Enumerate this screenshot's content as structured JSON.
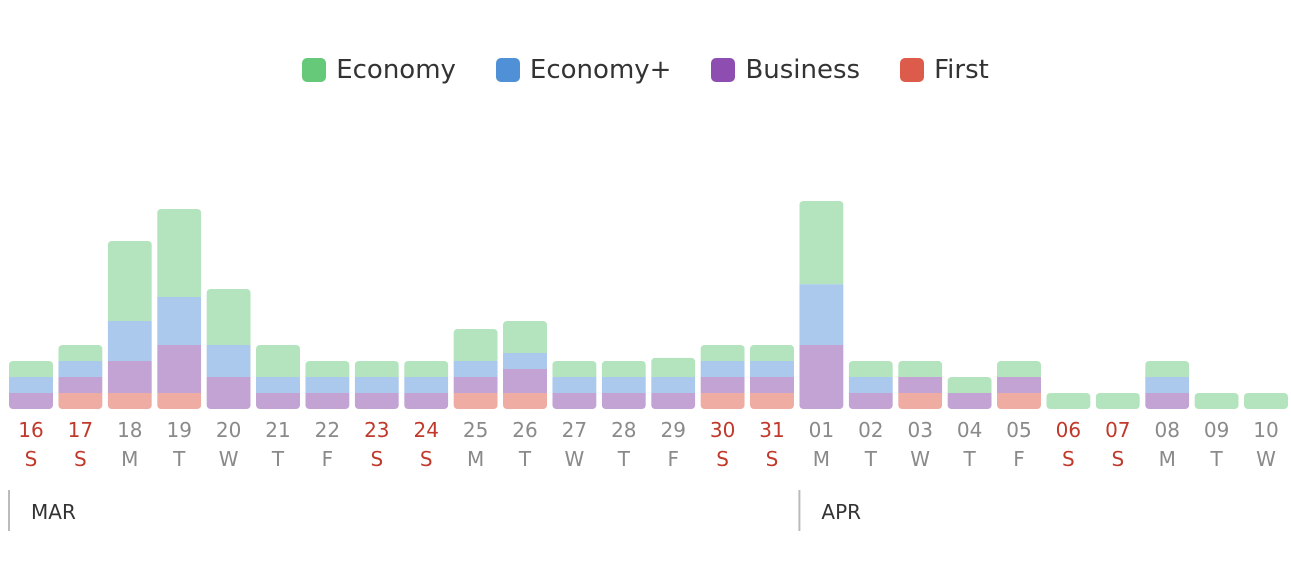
{
  "legend": [
    {
      "name": "Economy",
      "color": "#66c97a"
    },
    {
      "name": "Economy+",
      "color": "#4f90d6"
    },
    {
      "name": "Business",
      "color": "#8e4db0"
    },
    {
      "name": "First",
      "color": "#dc5b4b"
    }
  ],
  "colors": {
    "Economy": "#b4e4bd",
    "Economy+": "#aac9ec",
    "Business": "#c3a3d4",
    "First": "#eeaca2",
    "weekend_text": "#c0392b",
    "weekday_text": "#8a8a8a",
    "month_text": "#333333",
    "month_line": "#bbbbbb"
  },
  "months": [
    {
      "label": "MAR",
      "start_index": 0
    },
    {
      "label": "APR",
      "start_index": 16
    }
  ],
  "chart_data": {
    "type": "bar",
    "stacked": true,
    "categories": [
      "16",
      "17",
      "18",
      "19",
      "20",
      "21",
      "22",
      "23",
      "24",
      "25",
      "26",
      "27",
      "28",
      "29",
      "30",
      "31",
      "01",
      "02",
      "03",
      "04",
      "05",
      "06",
      "07",
      "08",
      "09",
      "10"
    ],
    "day_of_week": [
      "S",
      "S",
      "M",
      "T",
      "W",
      "T",
      "F",
      "S",
      "S",
      "M",
      "T",
      "W",
      "T",
      "F",
      "S",
      "S",
      "M",
      "T",
      "W",
      "T",
      "F",
      "S",
      "S",
      "M",
      "T",
      "W"
    ],
    "weekend": [
      true,
      true,
      false,
      false,
      false,
      false,
      false,
      true,
      true,
      false,
      false,
      false,
      false,
      false,
      true,
      true,
      false,
      false,
      false,
      false,
      false,
      true,
      true,
      false,
      false,
      false
    ],
    "series": [
      {
        "name": "First",
        "values": [
          0,
          1,
          1,
          1,
          0,
          0,
          0,
          0,
          0,
          1,
          1,
          0,
          0,
          0,
          1,
          1,
          0,
          0,
          1,
          0,
          1,
          0,
          0,
          0,
          0,
          0
        ]
      },
      {
        "name": "Business",
        "values": [
          1,
          1,
          2,
          3,
          2,
          1,
          1,
          1,
          1,
          1,
          1.5,
          1,
          1,
          1,
          1,
          1,
          4,
          1,
          1,
          1,
          1,
          0,
          0,
          1,
          0,
          0
        ]
      },
      {
        "name": "Economy+",
        "values": [
          1,
          1,
          2.5,
          3,
          2,
          1,
          1,
          1,
          1,
          1,
          1,
          1,
          1,
          1,
          1,
          1,
          3.8,
          1,
          0,
          0,
          0,
          0,
          0,
          1,
          0,
          0
        ]
      },
      {
        "name": "Economy",
        "values": [
          1,
          1,
          5,
          5.5,
          3.5,
          2,
          1,
          1,
          1,
          2,
          2,
          1,
          1,
          1.2,
          1,
          1,
          5.2,
          1,
          1,
          1,
          1,
          1,
          1,
          1,
          1,
          1
        ]
      }
    ]
  }
}
